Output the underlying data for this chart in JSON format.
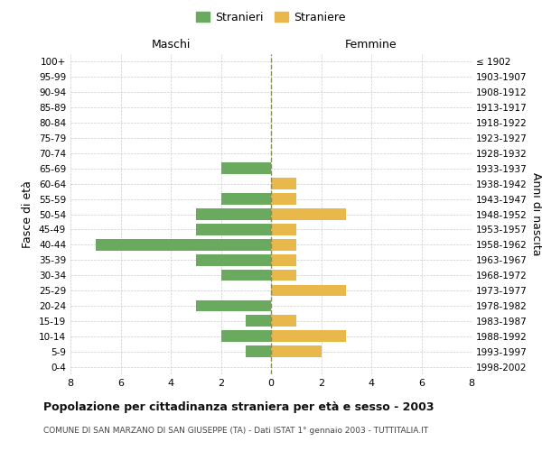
{
  "age_groups": [
    "0-4",
    "5-9",
    "10-14",
    "15-19",
    "20-24",
    "25-29",
    "30-34",
    "35-39",
    "40-44",
    "45-49",
    "50-54",
    "55-59",
    "60-64",
    "65-69",
    "70-74",
    "75-79",
    "80-84",
    "85-89",
    "90-94",
    "95-99",
    "100+"
  ],
  "birth_years": [
    "1998-2002",
    "1993-1997",
    "1988-1992",
    "1983-1987",
    "1978-1982",
    "1973-1977",
    "1968-1972",
    "1963-1967",
    "1958-1962",
    "1953-1957",
    "1948-1952",
    "1943-1947",
    "1938-1942",
    "1933-1937",
    "1928-1932",
    "1923-1927",
    "1918-1922",
    "1913-1917",
    "1908-1912",
    "1903-1907",
    "≤ 1902"
  ],
  "males": [
    0,
    1,
    2,
    1,
    3,
    0,
    2,
    3,
    7,
    3,
    3,
    2,
    0,
    2,
    0,
    0,
    0,
    0,
    0,
    0,
    0
  ],
  "females": [
    0,
    2,
    3,
    1,
    0,
    3,
    1,
    1,
    1,
    1,
    3,
    1,
    1,
    0,
    0,
    0,
    0,
    0,
    0,
    0,
    0
  ],
  "male_color": "#6aaa5e",
  "female_color": "#e8b84b",
  "bar_height": 0.75,
  "xlim": 8,
  "title": "Popolazione per cittadinanza straniera per età e sesso - 2003",
  "subtitle": "COMUNE DI SAN MARZANO DI SAN GIUSEPPE (TA) - Dati ISTAT 1° gennaio 2003 - TUTTITALIA.IT",
  "ylabel_left": "Fasce di età",
  "ylabel_right": "Anni di nascita",
  "legend_male": "Stranieri",
  "legend_female": "Straniere",
  "maschi_label": "Maschi",
  "femmine_label": "Femmine",
  "background_color": "#ffffff",
  "grid_color": "#cccccc",
  "center_line_color": "#8a8a5a",
  "title_fontsize": 9,
  "subtitle_fontsize": 6.5
}
